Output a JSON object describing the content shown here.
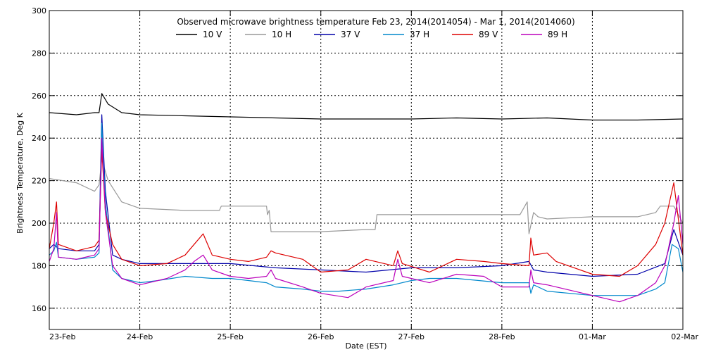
{
  "chart_data": {
    "type": "line",
    "title": "Observed microwave brightness temperature Feb 23, 2014(2014054) - Mar  1, 2014(2014060)",
    "xlabel": "Date (EST)",
    "ylabel": "Brightness Temperature, Deg K",
    "xlim": [
      0,
      7
    ],
    "ylim": [
      150,
      300
    ],
    "xticks": [
      0,
      1,
      2,
      3,
      4,
      5,
      6,
      7
    ],
    "xtick_labels": [
      "23-Feb",
      "24-Feb",
      "25-Feb",
      "26-Feb",
      "27-Feb",
      "28-Feb",
      "01-Mar",
      "02-Mar"
    ],
    "yticks": [
      160,
      180,
      200,
      220,
      240,
      260,
      280,
      300
    ],
    "ytick_labels": [
      "160",
      "180",
      "200",
      "220",
      "240",
      "260",
      "280",
      "300"
    ],
    "grid": "dotted",
    "legend_position": "top",
    "series": [
      {
        "name": "10 V",
        "color": "#000000",
        "x": [
          0,
          0.3,
          0.5,
          0.55,
          0.58,
          0.65,
          0.8,
          1.0,
          1.5,
          2.0,
          2.5,
          3.0,
          3.5,
          4.0,
          4.5,
          5.0,
          5.5,
          6.0,
          6.5,
          7.0
        ],
        "y": [
          252,
          251,
          252,
          252,
          261,
          256,
          252,
          251,
          250.5,
          250,
          249.5,
          249,
          249,
          249,
          249.5,
          249,
          249.5,
          248.5,
          248.5,
          249
        ]
      },
      {
        "name": "10 H",
        "color": "#999999",
        "x": [
          0,
          0.3,
          0.5,
          0.55,
          0.58,
          0.65,
          0.8,
          1.0,
          1.5,
          1.88,
          1.9,
          2.4,
          2.41,
          2.43,
          2.45,
          2.5,
          3.0,
          3.5,
          3.6,
          3.62,
          4.5,
          5.2,
          5.28,
          5.3,
          5.35,
          5.4,
          5.5,
          6.0,
          6.5,
          6.7,
          6.75,
          6.9,
          7.0
        ],
        "y": [
          221,
          219,
          215,
          218,
          230,
          220,
          210,
          207,
          206,
          206,
          208,
          208,
          204,
          206,
          196,
          196,
          196,
          197,
          197,
          204,
          204,
          204,
          210,
          195,
          205,
          203,
          202,
          203,
          203,
          205,
          208,
          208,
          200
        ]
      },
      {
        "name": "37 V",
        "color": "#0000aa",
        "x": [
          0,
          0.05,
          0.1,
          0.3,
          0.5,
          0.55,
          0.58,
          0.62,
          0.7,
          0.8,
          1.0,
          1.5,
          2.0,
          2.5,
          3.0,
          3.5,
          4.0,
          4.5,
          5.0,
          5.3,
          5.35,
          5.5,
          6.0,
          6.5,
          6.8,
          6.9,
          7.0
        ],
        "y": [
          188,
          190,
          188,
          187,
          187,
          190,
          251,
          215,
          185,
          183,
          181,
          181,
          181,
          179,
          178,
          177,
          179,
          179,
          180,
          182,
          178,
          177,
          175,
          176,
          181,
          197,
          185
        ]
      },
      {
        "name": "37 H",
        "color": "#0088cc",
        "x": [
          0,
          0.05,
          0.08,
          0.1,
          0.3,
          0.5,
          0.55,
          0.58,
          0.62,
          0.7,
          0.8,
          1.0,
          1.2,
          1.5,
          1.8,
          2.0,
          2.2,
          2.4,
          2.45,
          2.5,
          2.8,
          3.0,
          3.2,
          3.5,
          3.8,
          4.0,
          4.2,
          4.5,
          5.0,
          5.3,
          5.32,
          5.35,
          5.5,
          6.0,
          6.5,
          6.7,
          6.8,
          6.88,
          6.95,
          7.0
        ],
        "y": [
          185,
          187,
          191,
          184,
          183,
          184,
          186,
          247,
          210,
          178,
          174,
          172,
          173,
          175,
          174,
          174,
          173,
          172,
          171,
          170,
          169,
          168,
          168,
          169,
          171,
          173,
          174,
          174,
          172,
          172,
          167,
          171,
          168,
          166,
          166,
          169,
          172,
          190,
          188,
          177
        ]
      },
      {
        "name": "89 V",
        "color": "#dd0000",
        "x": [
          0,
          0.05,
          0.08,
          0.1,
          0.3,
          0.5,
          0.55,
          0.58,
          0.62,
          0.7,
          0.8,
          1.0,
          1.3,
          1.5,
          1.6,
          1.7,
          1.8,
          2.0,
          2.2,
          2.4,
          2.45,
          2.5,
          2.8,
          3.0,
          3.3,
          3.5,
          3.8,
          3.85,
          3.9,
          4.2,
          4.5,
          4.8,
          5.0,
          5.3,
          5.32,
          5.35,
          5.5,
          5.6,
          6.0,
          6.3,
          6.5,
          6.7,
          6.8,
          6.9,
          7.0
        ],
        "y": [
          188,
          200,
          210,
          190,
          187,
          189,
          192,
          235,
          205,
          190,
          183,
          180,
          181,
          185,
          190,
          195,
          185,
          183,
          182,
          184,
          187,
          186,
          183,
          177,
          178,
          183,
          180,
          187,
          181,
          177,
          183,
          182,
          181,
          180,
          193,
          185,
          186,
          182,
          176,
          175,
          180,
          190,
          200,
          219,
          185
        ]
      },
      {
        "name": "89 H",
        "color": "#bb00bb",
        "x": [
          0,
          0.05,
          0.08,
          0.1,
          0.3,
          0.5,
          0.55,
          0.58,
          0.62,
          0.7,
          0.8,
          1.0,
          1.3,
          1.5,
          1.6,
          1.7,
          1.8,
          2.0,
          2.2,
          2.4,
          2.45,
          2.5,
          2.8,
          3.0,
          3.3,
          3.5,
          3.8,
          3.85,
          3.9,
          4.2,
          4.5,
          4.8,
          5.0,
          5.3,
          5.32,
          5.35,
          5.5,
          6.0,
          6.3,
          6.5,
          6.7,
          6.8,
          6.9,
          6.95,
          7.0
        ],
        "y": [
          182,
          188,
          205,
          184,
          183,
          185,
          188,
          240,
          205,
          180,
          174,
          171,
          174,
          178,
          182,
          185,
          178,
          175,
          174,
          175,
          178,
          174,
          170,
          167,
          165,
          170,
          173,
          183,
          175,
          172,
          176,
          175,
          170,
          170,
          178,
          172,
          171,
          166,
          163,
          166,
          172,
          180,
          200,
          213,
          190
        ]
      }
    ]
  }
}
